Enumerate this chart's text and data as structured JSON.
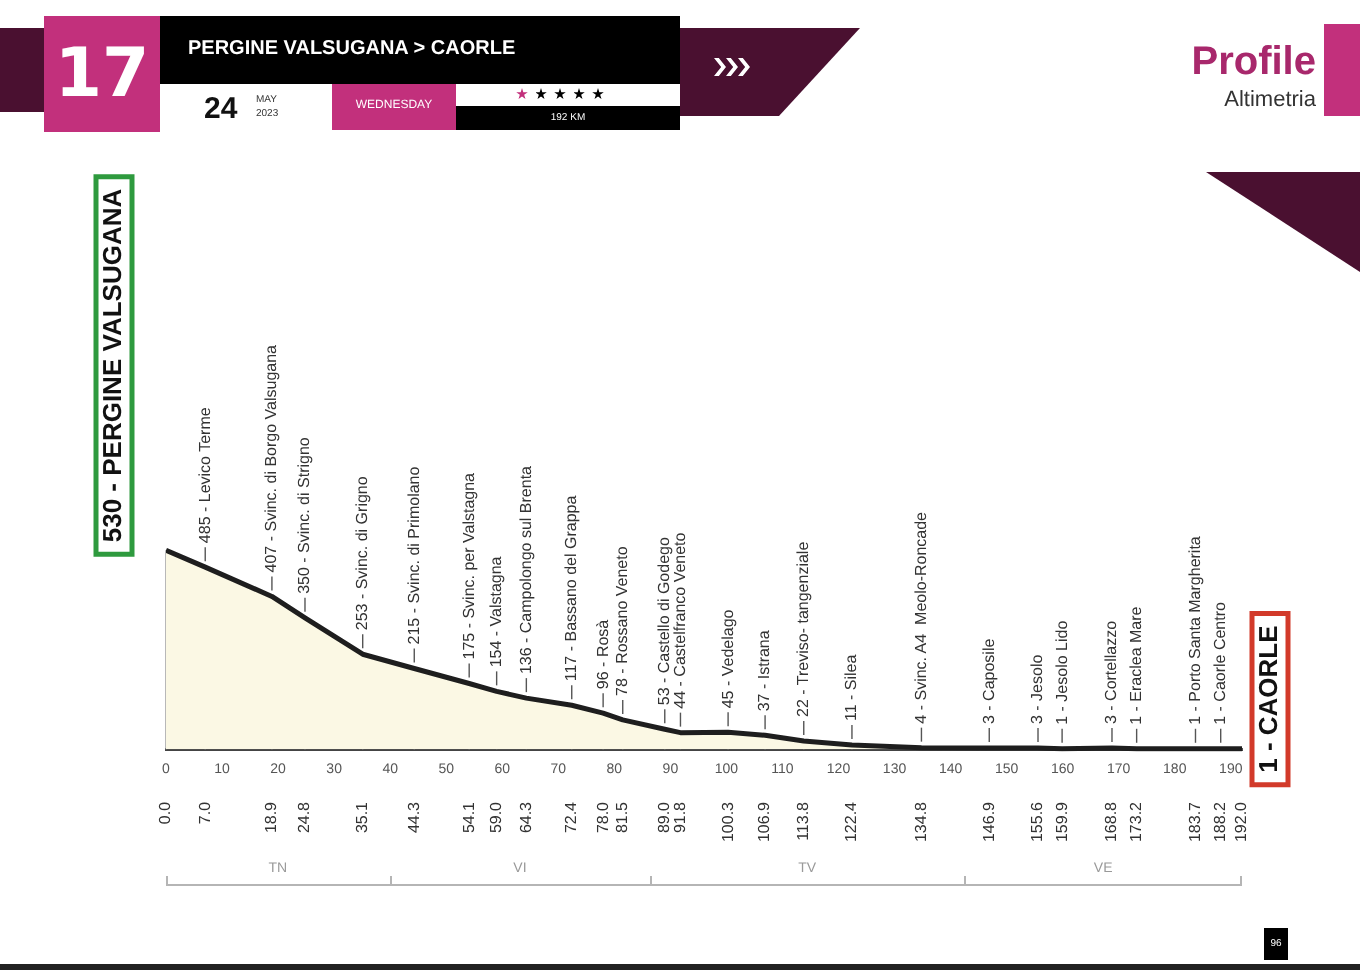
{
  "chart_data": {
    "type": "area",
    "title": "PERGINE VALSUGANA > CAORLE",
    "x": [
      0,
      7,
      18.9,
      24.8,
      35.1,
      44.3,
      54.1,
      59,
      64.3,
      72.4,
      78,
      81.5,
      89,
      91.8,
      100.3,
      106.9,
      113.8,
      122.4,
      134.8,
      146.9,
      155.6,
      159.9,
      168.8,
      173.2,
      183.7,
      188.2,
      192
    ],
    "series": [
      {
        "color": "#1e1e1e",
        "values": [
          530,
          485,
          407,
          350,
          253,
          215,
          175,
          154,
          136,
          117,
          96,
          78,
          53,
          44,
          45,
          37,
          22,
          11,
          4,
          3,
          3,
          1,
          3,
          1,
          1,
          1,
          1
        ],
        "value_labels": [
          "530 - PERGINE VALSUGANA",
          "485 - Levico Terme",
          "407 - Svinc. di Borgo Valsugana",
          "350 - Svinc. di Strigno",
          "253 - Svinc. di Grigno",
          "215 - Svinc. di Primolano",
          "175 - Svinc. per Valstagna",
          "154 - Valstagna",
          "136 - Campolongo sul Brenta",
          "117 - Bassano del Grappa",
          "96 - Rosà",
          "78 - Rossano Veneto",
          "53 - Castello di Godego",
          "44 - Castelfranco Veneto",
          "45 - Vedelago",
          "37 - Istrana",
          "22 - Treviso- tangenziale",
          "11 - Silea",
          "4 - Svinc. A4  Meolo-Roncade",
          "3 - Caposile",
          "3 - Jesolo",
          "1 - Jesolo Lido",
          "3 - Cortellazzo",
          "1 - Eraclea Mare",
          "1 - Porto Santa Margherita",
          "1 - Caorle Centro",
          "1 - CAORLE"
        ]
      }
    ],
    "xlim": [
      0,
      192
    ],
    "xticks": [
      0,
      10,
      20,
      30,
      40,
      50,
      60,
      70,
      80,
      90,
      100,
      110,
      120,
      130,
      140,
      150,
      160,
      170,
      180,
      190
    ],
    "x2ticks": [
      {
        "value": 0,
        "label": "0.0"
      },
      {
        "value": 7,
        "label": "7.0"
      },
      {
        "value": 18.9,
        "label": "18.9"
      },
      {
        "value": 24.8,
        "label": "24.8"
      },
      {
        "value": 35.1,
        "label": "35.1"
      },
      {
        "value": 44.3,
        "label": "44.3"
      },
      {
        "value": 54.1,
        "label": "54.1"
      },
      {
        "value": 59,
        "label": "59.0"
      },
      {
        "value": 64.3,
        "label": "64.3"
      },
      {
        "value": 72.4,
        "label": "72.4"
      },
      {
        "value": 78,
        "label": "78.0"
      },
      {
        "value": 81.5,
        "label": "81.5"
      },
      {
        "value": 89,
        "label": "89.0"
      },
      {
        "value": 91.8,
        "label": "91.8"
      },
      {
        "value": 100.3,
        "label": "100.3"
      },
      {
        "value": 106.9,
        "label": "106.9"
      },
      {
        "value": 113.8,
        "label": "113.8"
      },
      {
        "value": 122.4,
        "label": "122.4"
      },
      {
        "value": 134.8,
        "label": "134.8"
      },
      {
        "value": 146.9,
        "label": "146.9"
      },
      {
        "value": 155.6,
        "label": "155.6"
      },
      {
        "value": 159.9,
        "label": "159.9"
      },
      {
        "value": 168.8,
        "label": "168.8"
      },
      {
        "value": 173.2,
        "label": "173.2"
      },
      {
        "value": 183.7,
        "label": "183.7"
      },
      {
        "value": 188.2,
        "label": "188.2"
      },
      {
        "value": 192,
        "label": "192.0"
      }
    ],
    "x2lim": [
      0,
      192
    ],
    "tick_labels": "x",
    "legend": false,
    "annotations": [
      "17",
      "24",
      "MAY",
      "2023",
      "WEDNESDAY",
      "192 KM",
      "Profile",
      "Altimetria",
      "96",
      "TN",
      "VI",
      "TV",
      "VE"
    ]
  }
}
